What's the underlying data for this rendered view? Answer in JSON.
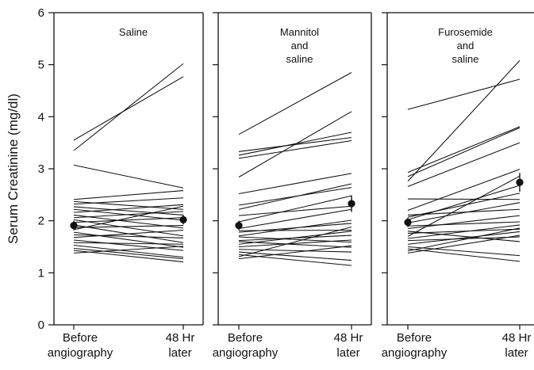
{
  "chart_data": {
    "type": "line",
    "ylabel": "Serum Creatinine (mg/dl)",
    "ylim": [
      0,
      6
    ],
    "yticks": [
      "0",
      "1",
      "2",
      "3",
      "4",
      "5",
      "6"
    ],
    "categories": [
      {
        "line1": "Before",
        "line2": "angiography"
      },
      {
        "line1": "48 Hr",
        "line2": "later"
      }
    ],
    "panels": [
      {
        "title_lines": [
          "Saline"
        ],
        "mean_points": [
          {
            "value": 1.91,
            "err": 0.09
          },
          {
            "value": 2.02,
            "err": 0.09
          }
        ],
        "subjects": [
          [
            3.35,
            5.02
          ],
          [
            3.55,
            4.77
          ],
          [
            3.07,
            2.63
          ],
          [
            2.41,
            2.58
          ],
          [
            2.37,
            2.22
          ],
          [
            2.32,
            2.44
          ],
          [
            2.27,
            2.11
          ],
          [
            2.22,
            2.01
          ],
          [
            2.16,
            2.31
          ],
          [
            2.11,
            1.86
          ],
          [
            2.06,
            2.18
          ],
          [
            2.02,
            1.71
          ],
          [
            1.97,
            2.06
          ],
          [
            1.92,
            1.58
          ],
          [
            1.87,
            1.91
          ],
          [
            1.83,
            2.28
          ],
          [
            1.78,
            1.49
          ],
          [
            1.73,
            1.67
          ],
          [
            1.68,
            1.82
          ],
          [
            1.63,
            1.43
          ],
          [
            1.58,
            1.55
          ],
          [
            1.53,
            1.3
          ],
          [
            1.47,
            1.27
          ],
          [
            1.43,
            1.21
          ],
          [
            1.38,
            1.51
          ]
        ]
      },
      {
        "title_lines": [
          "Mannitol",
          "and",
          "saline"
        ],
        "mean_points": [
          {
            "value": 1.91,
            "err": 0.09
          },
          {
            "value": 2.33,
            "err": 0.16
          }
        ],
        "subjects": [
          [
            3.66,
            4.85
          ],
          [
            3.33,
            3.6
          ],
          [
            3.26,
            3.7
          ],
          [
            3.2,
            3.54
          ],
          [
            2.84,
            4.1
          ],
          [
            2.52,
            2.91
          ],
          [
            2.3,
            2.64
          ],
          [
            2.22,
            2.71
          ],
          [
            2.1,
            2.28
          ],
          [
            1.98,
            2.48
          ],
          [
            1.85,
            2.22
          ],
          [
            1.81,
            1.82
          ],
          [
            1.78,
            1.95
          ],
          [
            1.71,
            2.01
          ],
          [
            1.69,
            1.59
          ],
          [
            1.62,
            1.72
          ],
          [
            1.6,
            1.49
          ],
          [
            1.55,
            1.8
          ],
          [
            1.5,
            1.63
          ],
          [
            1.45,
            1.4
          ],
          [
            1.4,
            1.24
          ],
          [
            1.35,
            1.14
          ],
          [
            1.31,
            1.88
          ],
          [
            1.27,
            1.52
          ]
        ]
      },
      {
        "title_lines": [
          "Furosemide",
          "and",
          "saline"
        ],
        "mean_points": [
          {
            "value": 1.97,
            "err": 0.09
          },
          {
            "value": 2.74,
            "err": 0.18
          }
        ],
        "subjects": [
          [
            4.14,
            4.72
          ],
          [
            2.93,
            3.81
          ],
          [
            2.85,
            3.79
          ],
          [
            2.76,
            5.08
          ],
          [
            2.66,
            3.5
          ],
          [
            2.42,
            2.41
          ],
          [
            2.2,
            2.99
          ],
          [
            2.11,
            2.22
          ],
          [
            2.07,
            2.53
          ],
          [
            2.02,
            2.68
          ],
          [
            1.96,
            2.35
          ],
          [
            1.9,
            1.98
          ],
          [
            1.85,
            2.1
          ],
          [
            1.8,
            1.6
          ],
          [
            1.76,
            1.84
          ],
          [
            1.7,
            2.86
          ],
          [
            1.66,
            1.92
          ],
          [
            1.62,
            1.69
          ],
          [
            1.55,
            1.79
          ],
          [
            1.5,
            1.33
          ],
          [
            1.46,
            1.22
          ],
          [
            1.42,
            1.86
          ],
          [
            1.38,
            1.72
          ]
        ]
      }
    ]
  }
}
